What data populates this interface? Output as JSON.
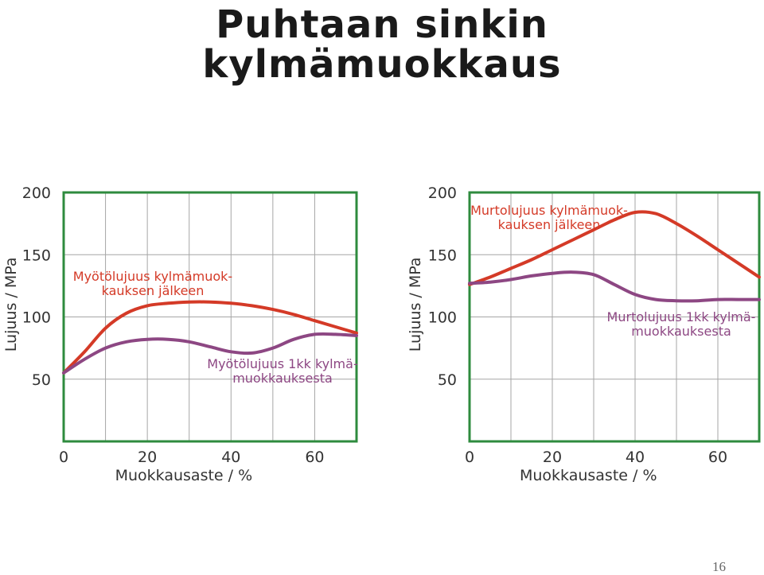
{
  "slide": {
    "title_line1": "Puhtaan sinkin",
    "title_line2": "kylmämuokkaus",
    "page_number": "16"
  },
  "colors": {
    "frame": "#2e8b3e",
    "grid": "#a6a6a6",
    "upper_curve": "#d43a27",
    "lower_curve": "#8d4783",
    "label_text": "#333333"
  },
  "chart_data": [
    {
      "type": "line",
      "title": "",
      "xlabel": "Muokkausaste / %",
      "ylabel": "Lujuus / MPa",
      "xlim": [
        0,
        70
      ],
      "ylim": [
        0,
        200
      ],
      "x_ticks": [
        0,
        20,
        40,
        60
      ],
      "y_ticks": [
        50,
        100,
        150,
        200
      ],
      "grid": true,
      "series": [
        {
          "name": "Myötölujuus kylmämuokkauksen jälkeen",
          "label_lines": [
            "Myötölujuus kylmämuok-",
            "kauksen jälkeen"
          ],
          "color_key": "upper_curve",
          "x": [
            0,
            5,
            10,
            15,
            20,
            25,
            30,
            35,
            40,
            45,
            50,
            55,
            60,
            65,
            70
          ],
          "y": [
            55,
            72,
            91,
            103,
            109,
            111,
            112,
            112,
            111,
            109,
            106,
            102,
            97,
            92,
            87
          ]
        },
        {
          "name": "Myötölujuus 1kk kylmämuokkauksesta",
          "label_lines": [
            "Myötölujuus 1kk kylmä-",
            "muokkauksesta"
          ],
          "color_key": "lower_curve",
          "x": [
            0,
            5,
            10,
            15,
            20,
            25,
            30,
            35,
            40,
            45,
            50,
            55,
            60,
            65,
            70
          ],
          "y": [
            55,
            66,
            75,
            80,
            82,
            82,
            80,
            76,
            72,
            71,
            75,
            82,
            86,
            86,
            85
          ]
        }
      ]
    },
    {
      "type": "line",
      "title": "",
      "xlabel": "Muokkausaste / %",
      "ylabel": "Lujuus / MPa",
      "xlim": [
        0,
        70
      ],
      "ylim": [
        0,
        200
      ],
      "x_ticks": [
        0,
        20,
        40,
        60
      ],
      "y_ticks": [
        50,
        100,
        150,
        200
      ],
      "grid": true,
      "series": [
        {
          "name": "Murtolujuus kylmämuokkauksen jälkeen",
          "label_lines": [
            "Murtolujuus kylmämuok-",
            "kauksen jälkeen"
          ],
          "color_key": "upper_curve",
          "x": [
            0,
            5,
            10,
            15,
            20,
            25,
            30,
            35,
            40,
            45,
            50,
            55,
            60,
            65,
            70
          ],
          "y": [
            126,
            132,
            139,
            146,
            154,
            162,
            170,
            178,
            184,
            183,
            175,
            165,
            154,
            143,
            132
          ]
        },
        {
          "name": "Murtolujuus 1kk kylmämuokkauksesta",
          "label_lines": [
            "Murtolujuus 1kk kylmä-",
            "muokkauksesta"
          ],
          "color_key": "lower_curve",
          "x": [
            0,
            5,
            10,
            15,
            20,
            25,
            30,
            35,
            40,
            45,
            50,
            55,
            60,
            65,
            70
          ],
          "y": [
            127,
            128,
            130,
            133,
            135,
            136,
            134,
            126,
            118,
            114,
            113,
            113,
            114,
            114,
            114
          ]
        }
      ]
    }
  ]
}
